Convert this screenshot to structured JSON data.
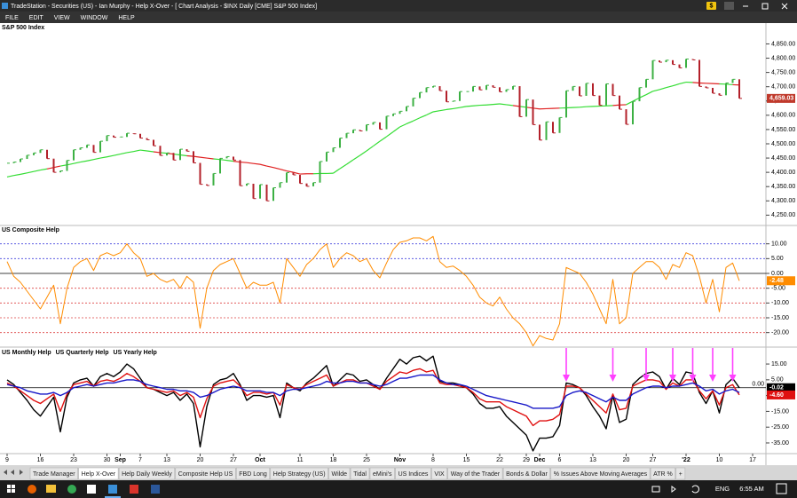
{
  "window": {
    "title": "TradeStation - Securities (US) - Ian Murphy - Help X-Over - [ Chart Analysis - $INX Daily [CME] S&P 500 Index]",
    "menu": [
      "FILE",
      "EDIT",
      "VIEW",
      "WINDOW",
      "HELP"
    ],
    "badge": "$"
  },
  "chart_data": [
    {
      "type": "price",
      "title": "S&P 500 Index",
      "ylim": [
        4220,
        4895
      ],
      "yticks": [
        {
          "value": 4250,
          "label": "4,250.00"
        },
        {
          "value": 4300,
          "label": "4,300.00"
        },
        {
          "value": 4350,
          "label": "4,350.00"
        },
        {
          "value": 4400,
          "label": "4,400.00"
        },
        {
          "value": 4450,
          "label": "4,450.00"
        },
        {
          "value": 4500,
          "label": "4,500.00"
        },
        {
          "value": 4550,
          "label": "4,550.00"
        },
        {
          "value": 4600,
          "label": "4,600.00"
        },
        {
          "value": 4650,
          "label": "4,650.00"
        },
        {
          "value": 4700,
          "label": "4,700.00"
        },
        {
          "value": 4750,
          "label": "4,750.00"
        },
        {
          "value": 4800,
          "label": "4,800.00"
        },
        {
          "value": 4850,
          "label": "4,850.00"
        }
      ],
      "colors": {
        "up": "#3cb043",
        "down": "#b3202a",
        "ma_above": "#33dd33",
        "ma_below": "#e02020",
        "marker": "#c0392b"
      },
      "series": [
        {
          "role": "close",
          "values": [
            4432,
            4436,
            4447,
            4460,
            4468,
            4479,
            4448,
            4400,
            4405,
            4442,
            4479,
            4486,
            4496,
            4470,
            4509,
            4529,
            4523,
            4524,
            4537,
            4535,
            4520,
            4514,
            4493,
            4459,
            4468,
            4443,
            4481,
            4474,
            4433,
            4358,
            4354,
            4396,
            4449,
            4455,
            4443,
            4353,
            4360,
            4308,
            4357,
            4300,
            4346,
            4364,
            4399,
            4391,
            4361,
            4351,
            4364,
            4438,
            4471,
            4486,
            4520,
            4537,
            4549,
            4545,
            4567,
            4575,
            4551,
            4597,
            4605,
            4614,
            4631,
            4660,
            4680,
            4697,
            4702,
            4686,
            4647,
            4650,
            4683,
            4683,
            4701,
            4689,
            4705,
            4698,
            4682,
            4690,
            4702,
            4595,
            4655,
            4567,
            4513,
            4577,
            4538,
            4592,
            4686,
            4701,
            4668,
            4712,
            4669,
            4635,
            4710,
            4669,
            4621,
            4568,
            4649,
            4697,
            4726,
            4792,
            4786,
            4793,
            4778,
            4766,
            4797,
            4794,
            4701,
            4696,
            4677,
            4670,
            4713,
            4726,
            4659.03,
            null,
            null
          ],
          "last_marker": {
            "value": 4659.03,
            "label": "4,659.03"
          }
        },
        {
          "role": "average",
          "values": [
            4384,
            4389,
            4393,
            4398,
            4403,
            4408,
            4412,
            4417,
            4422,
            4426,
            4431,
            4436,
            4440,
            4445,
            4450,
            4454,
            4459,
            4464,
            4469,
            4473,
            4478,
            4475,
            4472,
            4469,
            4467,
            4464,
            4461,
            4458,
            4456,
            4453,
            4450,
            4447,
            4445,
            4442,
            4439,
            4436,
            4434,
            4431,
            4428,
            4422,
            4417,
            4411,
            4405,
            4400,
            4394,
            4395,
            4395,
            4396,
            4396,
            4397,
            4413,
            4428,
            4444,
            4459,
            4475,
            4492,
            4509,
            4525,
            4542,
            4559,
            4570,
            4580,
            4591,
            4601,
            4612,
            4616,
            4620,
            4623,
            4627,
            4631,
            4633,
            4635,
            4636,
            4638,
            4640,
            4637,
            4634,
            4631,
            4628,
            4625,
            4622,
            4623,
            4624,
            4625,
            4626,
            4627,
            4628,
            4630,
            4631,
            4632,
            4633,
            4634,
            4636,
            4637,
            4649,
            4661,
            4672,
            4684,
            4690,
            4697,
            4703,
            4710,
            4716,
            4715,
            4713,
            4712,
            4711,
            4710,
            4709,
            4707,
            4706,
            null,
            null
          ]
        }
      ]
    },
    {
      "type": "line",
      "title": "US Composite Help",
      "ylim": [
        -24.6,
        12.9
      ],
      "yticks": [
        {
          "value": 10,
          "label": "10.00"
        },
        {
          "value": 5,
          "label": "5.00"
        },
        {
          "value": 0,
          "label": "0.00"
        },
        {
          "value": -5,
          "label": "-5.00"
        },
        {
          "value": -10,
          "label": "-10.00"
        },
        {
          "value": -15,
          "label": "-15.00"
        },
        {
          "value": -20,
          "label": "-20.00"
        }
      ],
      "ref_lines": true,
      "ref_colors": {
        "positive": "#4444dd",
        "zero": "#000000",
        "negative": "#dd4444"
      },
      "series": [
        {
          "color": "#ff8c00",
          "values": [
            4,
            -1,
            -3,
            -6,
            -9,
            -12,
            -8,
            -4,
            -17,
            -5,
            2,
            4,
            5,
            1,
            6,
            7,
            6,
            7,
            10,
            7,
            5,
            -1,
            0,
            -2,
            -3,
            -2,
            -5,
            -1,
            -3,
            -18.5,
            -5,
            1,
            3,
            4,
            5,
            0,
            -5,
            -3,
            -4,
            -4,
            -3,
            -10,
            5,
            2,
            -1,
            3,
            5,
            8,
            10,
            2,
            5,
            7,
            6,
            4,
            5,
            1,
            -1.5,
            3.5,
            8,
            10.5,
            11,
            12,
            12,
            11,
            12.5,
            4,
            2,
            2.5,
            1,
            -1,
            -4,
            -8,
            -10,
            -11,
            -8,
            -12,
            -15,
            -17,
            -20,
            -24.5,
            -21,
            -22,
            -22.5,
            -17,
            2,
            1,
            0,
            -3,
            -7,
            -12,
            -17,
            -2,
            -17,
            -15,
            0,
            2,
            4,
            4,
            2,
            -2,
            3,
            2,
            7,
            6,
            -1,
            -10,
            -2,
            -13,
            2,
            3.5,
            -2.48,
            null,
            null
          ],
          "last_marker": -2.48
        }
      ]
    },
    {
      "type": "line",
      "ylim": [
        -41.2,
        24.6
      ],
      "yticks": [
        {
          "value": 15,
          "label": "15.00"
        },
        {
          "value": 5,
          "label": "5.00"
        },
        {
          "value": -5,
          "label": "-5.00"
        },
        {
          "value": -15,
          "label": "-15.00"
        },
        {
          "value": -25,
          "label": "-25.00"
        },
        {
          "value": -35,
          "label": "-35.00"
        }
      ],
      "zero_line": {
        "value": 0,
        "label": "0.00"
      },
      "categories": [
        "9",
        null,
        null,
        null,
        null,
        "16",
        null,
        null,
        null,
        null,
        "23",
        null,
        null,
        null,
        null,
        "30",
        null,
        "Sep",
        null,
        null,
        "7",
        null,
        null,
        null,
        "13",
        null,
        null,
        null,
        null,
        "20",
        null,
        null,
        null,
        null,
        "27",
        null,
        null,
        null,
        "Oct",
        null,
        null,
        null,
        null,
        null,
        "11",
        null,
        null,
        null,
        null,
        "18",
        null,
        null,
        null,
        null,
        "25",
        null,
        null,
        null,
        null,
        "Nov",
        null,
        null,
        null,
        null,
        "8",
        null,
        null,
        null,
        null,
        "15",
        null,
        null,
        null,
        null,
        "22",
        null,
        null,
        null,
        "29",
        null,
        "Dec",
        null,
        null,
        "6",
        null,
        null,
        null,
        null,
        "13",
        null,
        null,
        null,
        null,
        "20",
        null,
        null,
        null,
        "27",
        null,
        null,
        null,
        null,
        "'22",
        null,
        null,
        null,
        null,
        "10",
        null,
        null,
        null,
        null,
        "17"
      ],
      "series": [
        {
          "name": "US Monthly Help",
          "color": "#000000",
          "values": [
            5,
            2,
            -3,
            -8,
            -14,
            -18,
            -12,
            -6,
            -28,
            -6,
            3,
            5,
            6,
            1,
            7,
            9,
            7,
            10,
            15,
            12,
            6,
            0,
            -1,
            -3,
            -5,
            -3,
            -8,
            -4,
            -10,
            -37.5,
            -12,
            2,
            5,
            6,
            9,
            2,
            -8,
            -5,
            -5,
            -6,
            -5,
            -19,
            3,
            0,
            -2,
            3,
            6,
            10,
            14,
            1,
            5,
            9,
            8,
            4,
            5,
            2,
            -1,
            6,
            12,
            18,
            15,
            19,
            20,
            17,
            20,
            4,
            3,
            3,
            2,
            0,
            -4,
            -10,
            -13,
            -13,
            -12,
            -18,
            -22,
            -26,
            -30,
            -40,
            -32,
            -32,
            -31,
            -24,
            3,
            2,
            0,
            -5,
            -12,
            -18,
            -26,
            -5,
            -22,
            -20,
            2,
            6,
            9,
            10,
            7,
            -1,
            6,
            2,
            10,
            9,
            -3,
            -10,
            -2,
            -16,
            2,
            6,
            -0.02,
            null,
            null
          ],
          "last_marker": -0.02
        },
        {
          "name": "US Quarterly Help",
          "color": "#e01010",
          "values": [
            3,
            1,
            -2,
            -5,
            -8,
            -10,
            -7,
            -4,
            -15,
            -4,
            2,
            3,
            4,
            1,
            4,
            5,
            4,
            6,
            9,
            7,
            4,
            0,
            -1,
            -2,
            -3,
            -2,
            -5,
            -3,
            -6,
            -19,
            -7,
            1,
            3,
            4,
            5,
            1,
            -5,
            -3,
            -3,
            -4,
            -3,
            -11,
            2,
            0,
            -1,
            2,
            4,
            6,
            8,
            1,
            3,
            5,
            5,
            3,
            3,
            1,
            -1,
            4,
            7,
            10,
            9,
            11,
            12,
            10,
            11,
            3,
            2,
            2,
            1,
            0,
            -3,
            -7,
            -9,
            -9,
            -9,
            -12,
            -14,
            -16,
            -18,
            -24,
            -21,
            -21,
            -20,
            -17,
            1,
            1,
            0,
            -4,
            -8,
            -12,
            -16,
            -4,
            -14,
            -13,
            1,
            3,
            5,
            5,
            4,
            -1,
            3,
            1,
            5,
            5,
            -2,
            -7,
            -2,
            -11,
            0,
            2,
            -4.6,
            null,
            null
          ],
          "last_marker": {
            "value": -4.6,
            "label": "-4.60"
          }
        },
        {
          "name": "US Yearly Help",
          "color": "#1818c8",
          "values": [
            2,
            1,
            0,
            -2,
            -3,
            -4,
            -4,
            -3,
            -5,
            -3,
            0,
            1,
            2,
            1,
            2,
            3,
            3,
            4,
            5,
            5,
            4,
            2,
            1,
            0,
            -1,
            -1,
            -2,
            -2,
            -3,
            -6,
            -5,
            -3,
            -1,
            0,
            1,
            0,
            -2,
            -2,
            -2,
            -3,
            -3,
            -5,
            -2,
            -1,
            -1,
            0,
            1,
            2,
            4,
            3,
            3,
            4,
            4,
            3,
            3,
            2,
            1,
            2,
            4,
            6,
            6,
            7,
            8,
            8,
            8,
            5,
            3,
            2,
            2,
            1,
            -1,
            -3,
            -5,
            -6,
            -7,
            -8,
            -9,
            -10,
            -11,
            -13,
            -13,
            -13,
            -13,
            -12,
            -5,
            -3,
            -2,
            -3,
            -5,
            -7,
            -9,
            -6,
            -8,
            -8,
            -4,
            -2,
            0,
            1,
            1,
            0,
            1,
            1,
            2,
            3,
            1,
            -2,
            -1,
            -4,
            -2,
            -1,
            -3,
            null,
            null
          ]
        }
      ]
    }
  ],
  "tabs": {
    "items": [
      "Trade Manager",
      "Help X-Over",
      "Help Daily Weekly",
      "Composite Help US",
      "FBD Long",
      "Help Strategy (US)",
      "Wilde",
      "Tidal",
      "eMini's",
      "US Indices",
      "VIX",
      "Way of the Trader",
      "Bonds & Dollar",
      "% Issues Above Moving Averages",
      "ATR %",
      "+"
    ],
    "active": 1
  },
  "taskbar": {
    "language": "ENG",
    "time": "6:55 AM"
  }
}
